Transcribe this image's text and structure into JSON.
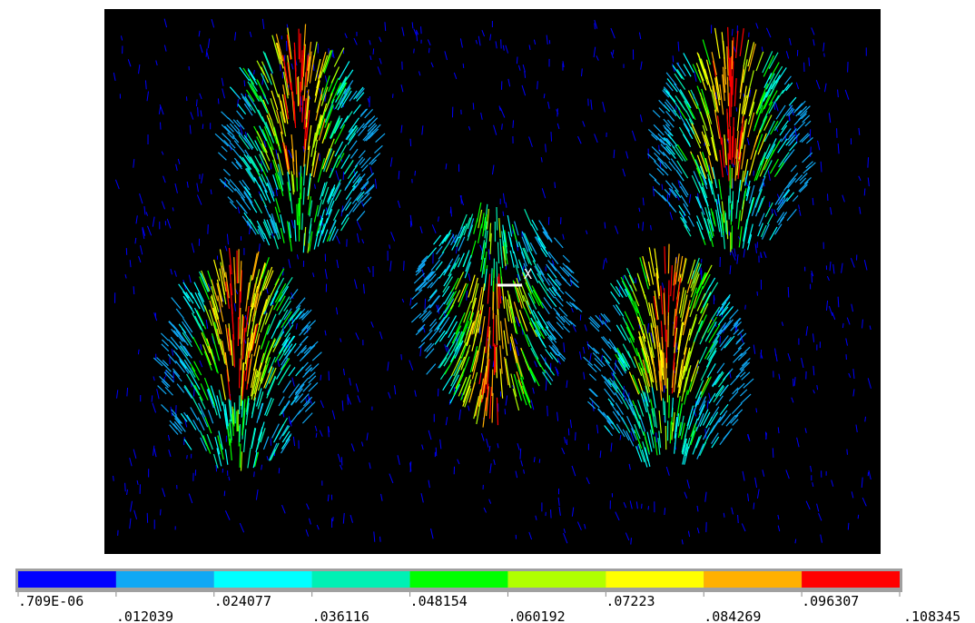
{
  "legend": {
    "colors": [
      "#0000ff",
      "#10a8f4",
      "#00ffff",
      "#00f0b4",
      "#00ff00",
      "#b0ff00",
      "#ffff00",
      "#ffb000",
      "#ff0000"
    ],
    "labels": [
      ".709E-06",
      ".012039",
      ".024077",
      ".036116",
      ".048154",
      ".060192",
      ".07223",
      ".084269",
      ".096307",
      ".108345"
    ]
  },
  "triad_label": "X"
}
